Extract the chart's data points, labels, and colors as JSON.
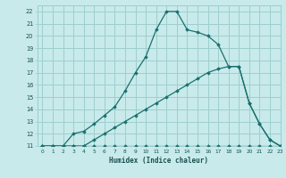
{
  "xlabel": "Humidex (Indice chaleur)",
  "xlim": [
    -0.5,
    23
  ],
  "ylim": [
    11,
    22.5
  ],
  "xticks": [
    0,
    1,
    2,
    3,
    4,
    5,
    6,
    7,
    8,
    9,
    10,
    11,
    12,
    13,
    14,
    15,
    16,
    17,
    18,
    19,
    20,
    21,
    22,
    23
  ],
  "yticks": [
    11,
    12,
    13,
    14,
    15,
    16,
    17,
    18,
    19,
    20,
    21,
    22
  ],
  "background_color": "#c8eaea",
  "grid_color": "#9ecece",
  "line_color": "#1a7070",
  "series": [
    {
      "x": [
        0,
        1,
        2,
        3,
        4,
        5,
        6,
        7,
        8,
        9,
        10,
        11,
        12,
        13,
        14,
        15,
        16,
        17,
        18,
        19,
        20,
        21,
        22,
        23
      ],
      "y": [
        11,
        11,
        11,
        11,
        11,
        11,
        11,
        11,
        11,
        11,
        11,
        11,
        11,
        11,
        11,
        11,
        11,
        11,
        11,
        11,
        11,
        11,
        11,
        11
      ]
    },
    {
      "x": [
        0,
        1,
        2,
        3,
        4,
        5,
        6,
        7,
        8,
        9,
        10,
        11,
        12,
        13,
        14,
        15,
        16,
        17,
        18,
        19,
        20,
        21,
        22,
        23
      ],
      "y": [
        11,
        11,
        11,
        11,
        11,
        11.5,
        12,
        12.5,
        13,
        13.5,
        14,
        14.5,
        15,
        15.5,
        16,
        16.5,
        17,
        17.3,
        17.5,
        17.5,
        14.5,
        12.8,
        11.5,
        11
      ]
    },
    {
      "x": [
        0,
        1,
        2,
        3,
        4,
        5,
        6,
        7,
        8,
        9,
        10,
        11,
        12,
        13,
        14,
        15,
        16,
        17,
        18,
        19,
        20,
        21,
        22,
        23
      ],
      "y": [
        11,
        11,
        11,
        12,
        12.2,
        12.8,
        13.5,
        14.2,
        15.5,
        17,
        18.3,
        20.5,
        22,
        22,
        20.5,
        20.3,
        20,
        19.3,
        17.5,
        17.5,
        14.5,
        12.8,
        11.5,
        11
      ]
    }
  ]
}
